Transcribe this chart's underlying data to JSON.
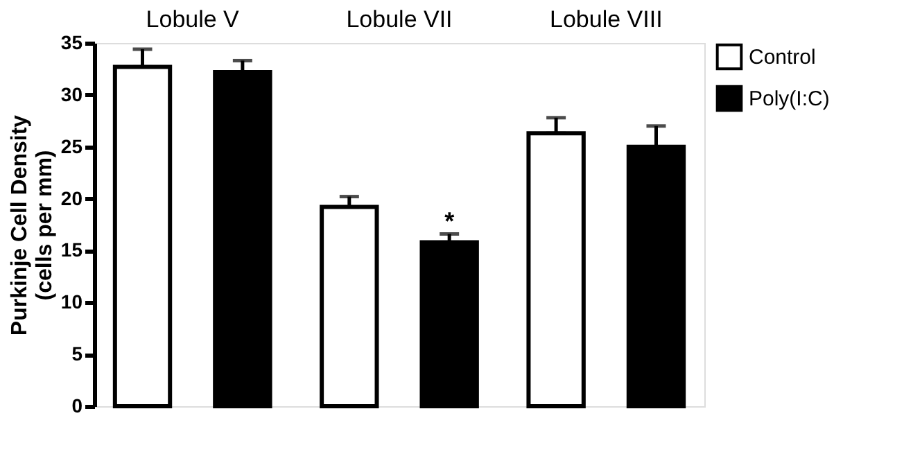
{
  "chart_data": {
    "type": "bar",
    "categories": [
      "Lobule V",
      "Lobule VII",
      "Lobule VIII"
    ],
    "ylabel": "Purkinje Cell Density\n(cells per mm)",
    "series": [
      {
        "name": "Control",
        "color": "#ffffff",
        "values": [
          32.7,
          19.2,
          26.3
        ],
        "errors": [
          [
            32.7,
            34.4
          ],
          [
            19.2,
            20.2
          ],
          [
            26.3,
            27.8
          ]
        ]
      },
      {
        "name": "Poly(I:C)",
        "color": "#000000",
        "values": [
          32.2,
          15.8,
          25.0
        ],
        "errors": [
          [
            32.2,
            33.3
          ],
          [
            15.8,
            16.6
          ],
          [
            25.0,
            27.0
          ]
        ]
      }
    ],
    "annotations": [
      "*"
    ],
    "ylim": [
      0,
      35
    ],
    "yticks": [
      0,
      5,
      10,
      15,
      20,
      25,
      30,
      35
    ],
    "grid": false,
    "legend": "top right"
  }
}
